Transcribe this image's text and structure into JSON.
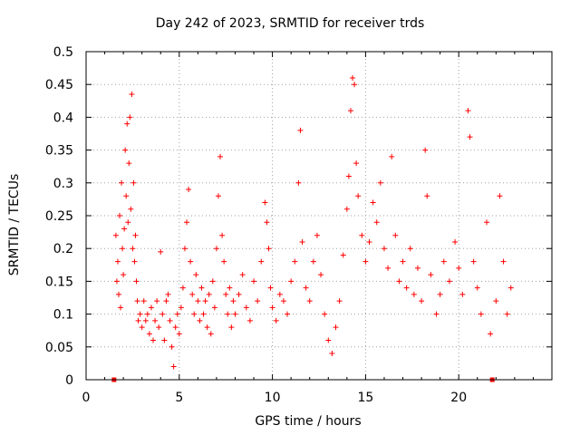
{
  "chart_data": {
    "type": "scatter",
    "title": "Day 242 of 2023, SRMTID for receiver trds",
    "xlabel": "GPS time / hours",
    "ylabel": "SRMTID / TECUs",
    "xlim": [
      0,
      25
    ],
    "ylim": [
      0,
      0.5
    ],
    "xticks": [
      0,
      5,
      10,
      15,
      20
    ],
    "xtick_labels": [
      "0",
      "5",
      "10",
      "15",
      "20"
    ],
    "yticks": [
      0,
      0.05,
      0.1,
      0.15,
      0.2,
      0.25,
      0.3,
      0.35,
      0.4,
      0.45,
      0.5
    ],
    "ytick_labels": [
      "0",
      "0.05",
      "0.1",
      "0.15",
      "0.2",
      "0.25",
      "0.3",
      "0.35",
      "0.4",
      "0.45",
      "0.5"
    ],
    "grid": true,
    "marker": "plus",
    "color": "#ff0000",
    "zero_markers": [
      1.5,
      21.8
    ],
    "series": [
      {
        "name": "SRMTID",
        "points": [
          [
            1.6,
            0.22
          ],
          [
            1.65,
            0.15
          ],
          [
            1.7,
            0.18
          ],
          [
            1.75,
            0.13
          ],
          [
            1.8,
            0.25
          ],
          [
            1.85,
            0.11
          ],
          [
            1.9,
            0.3
          ],
          [
            1.95,
            0.2
          ],
          [
            2.0,
            0.16
          ],
          [
            2.05,
            0.23
          ],
          [
            2.1,
            0.35
          ],
          [
            2.15,
            0.28
          ],
          [
            2.2,
            0.39
          ],
          [
            2.25,
            0.24
          ],
          [
            2.3,
            0.33
          ],
          [
            2.35,
            0.4
          ],
          [
            2.4,
            0.26
          ],
          [
            2.45,
            0.435
          ],
          [
            2.5,
            0.2
          ],
          [
            2.55,
            0.3
          ],
          [
            2.6,
            0.18
          ],
          [
            2.65,
            0.22
          ],
          [
            2.7,
            0.15
          ],
          [
            2.75,
            0.12
          ],
          [
            2.8,
            0.09
          ],
          [
            2.9,
            0.1
          ],
          [
            3.0,
            0.08
          ],
          [
            3.1,
            0.12
          ],
          [
            3.2,
            0.09
          ],
          [
            3.3,
            0.1
          ],
          [
            3.4,
            0.07
          ],
          [
            3.5,
            0.11
          ],
          [
            3.6,
            0.06
          ],
          [
            3.7,
            0.09
          ],
          [
            3.8,
            0.12
          ],
          [
            3.9,
            0.08
          ],
          [
            4.0,
            0.195
          ],
          [
            4.1,
            0.1
          ],
          [
            4.2,
            0.06
          ],
          [
            4.3,
            0.12
          ],
          [
            4.4,
            0.13
          ],
          [
            4.5,
            0.09
          ],
          [
            4.6,
            0.05
          ],
          [
            4.7,
            0.02
          ],
          [
            4.8,
            0.08
          ],
          [
            4.9,
            0.1
          ],
          [
            5.0,
            0.07
          ],
          [
            5.1,
            0.11
          ],
          [
            5.2,
            0.14
          ],
          [
            5.3,
            0.2
          ],
          [
            5.4,
            0.24
          ],
          [
            5.5,
            0.29
          ],
          [
            5.6,
            0.18
          ],
          [
            5.7,
            0.13
          ],
          [
            5.8,
            0.1
          ],
          [
            5.9,
            0.16
          ],
          [
            6.0,
            0.12
          ],
          [
            6.1,
            0.09
          ],
          [
            6.2,
            0.14
          ],
          [
            6.3,
            0.1
          ],
          [
            6.4,
            0.12
          ],
          [
            6.5,
            0.08
          ],
          [
            6.6,
            0.13
          ],
          [
            6.7,
            0.07
          ],
          [
            6.8,
            0.15
          ],
          [
            6.9,
            0.11
          ],
          [
            7.0,
            0.2
          ],
          [
            7.1,
            0.28
          ],
          [
            7.2,
            0.34
          ],
          [
            7.3,
            0.22
          ],
          [
            7.4,
            0.18
          ],
          [
            7.5,
            0.13
          ],
          [
            7.6,
            0.1
          ],
          [
            7.7,
            0.14
          ],
          [
            7.8,
            0.08
          ],
          [
            7.9,
            0.12
          ],
          [
            8.0,
            0.1
          ],
          [
            8.2,
            0.13
          ],
          [
            8.4,
            0.16
          ],
          [
            8.6,
            0.11
          ],
          [
            8.8,
            0.09
          ],
          [
            9.0,
            0.15
          ],
          [
            9.2,
            0.12
          ],
          [
            9.4,
            0.18
          ],
          [
            9.6,
            0.27
          ],
          [
            9.7,
            0.24
          ],
          [
            9.8,
            0.2
          ],
          [
            9.9,
            0.14
          ],
          [
            10.0,
            0.11
          ],
          [
            10.2,
            0.09
          ],
          [
            10.4,
            0.13
          ],
          [
            10.6,
            0.12
          ],
          [
            10.8,
            0.1
          ],
          [
            11.0,
            0.15
          ],
          [
            11.2,
            0.18
          ],
          [
            11.4,
            0.3
          ],
          [
            11.5,
            0.38
          ],
          [
            11.6,
            0.21
          ],
          [
            11.8,
            0.14
          ],
          [
            12.0,
            0.12
          ],
          [
            12.2,
            0.18
          ],
          [
            12.4,
            0.22
          ],
          [
            12.6,
            0.16
          ],
          [
            12.8,
            0.1
          ],
          [
            13.0,
            0.06
          ],
          [
            13.2,
            0.04
          ],
          [
            13.4,
            0.08
          ],
          [
            13.6,
            0.12
          ],
          [
            13.8,
            0.19
          ],
          [
            14.0,
            0.26
          ],
          [
            14.1,
            0.31
          ],
          [
            14.2,
            0.41
          ],
          [
            14.3,
            0.46
          ],
          [
            14.4,
            0.45
          ],
          [
            14.5,
            0.33
          ],
          [
            14.6,
            0.28
          ],
          [
            14.8,
            0.22
          ],
          [
            15.0,
            0.18
          ],
          [
            15.2,
            0.21
          ],
          [
            15.4,
            0.27
          ],
          [
            15.6,
            0.24
          ],
          [
            15.8,
            0.3
          ],
          [
            16.0,
            0.2
          ],
          [
            16.2,
            0.17
          ],
          [
            16.4,
            0.34
          ],
          [
            16.6,
            0.22
          ],
          [
            16.8,
            0.15
          ],
          [
            17.0,
            0.18
          ],
          [
            17.2,
            0.14
          ],
          [
            17.4,
            0.2
          ],
          [
            17.6,
            0.13
          ],
          [
            17.8,
            0.17
          ],
          [
            18.0,
            0.12
          ],
          [
            18.2,
            0.35
          ],
          [
            18.3,
            0.28
          ],
          [
            18.5,
            0.16
          ],
          [
            18.8,
            0.1
          ],
          [
            19.0,
            0.13
          ],
          [
            19.2,
            0.18
          ],
          [
            19.5,
            0.15
          ],
          [
            19.8,
            0.21
          ],
          [
            20.0,
            0.17
          ],
          [
            20.2,
            0.13
          ],
          [
            20.5,
            0.41
          ],
          [
            20.6,
            0.37
          ],
          [
            20.8,
            0.18
          ],
          [
            21.0,
            0.14
          ],
          [
            21.2,
            0.1
          ],
          [
            21.5,
            0.24
          ],
          [
            21.7,
            0.07
          ],
          [
            22.0,
            0.12
          ],
          [
            22.2,
            0.28
          ],
          [
            22.4,
            0.18
          ],
          [
            22.6,
            0.1
          ],
          [
            22.8,
            0.14
          ]
        ]
      }
    ]
  }
}
